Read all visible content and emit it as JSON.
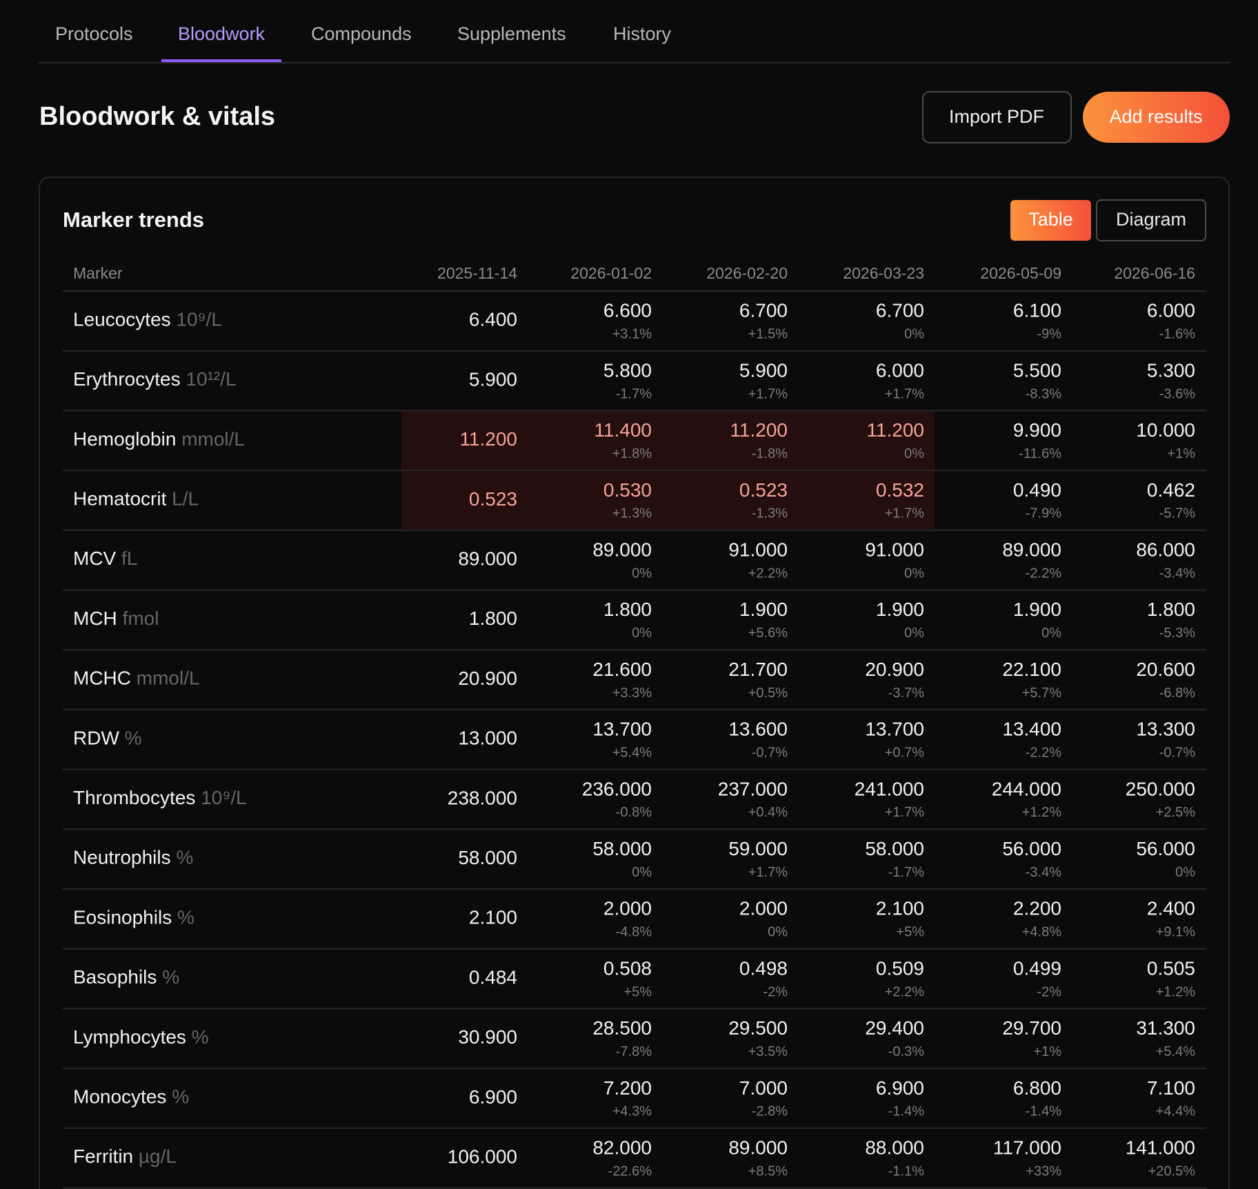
{
  "tabs": [
    "Protocols",
    "Bloodwork",
    "Compounds",
    "Supplements",
    "History"
  ],
  "active_tab": 1,
  "header": {
    "title": "Bloodwork & vitals",
    "buttons": [
      "Import PDF",
      "Add results"
    ]
  },
  "card": {
    "title": "Marker trends",
    "toggle": [
      "Table",
      "Diagram"
    ],
    "active_toggle": 0
  },
  "table": {
    "columns": [
      "Marker",
      "2025-11-14",
      "2026-01-02",
      "2026-02-20",
      "2026-03-23",
      "2026-05-09",
      "2026-06-16"
    ],
    "rows": [
      {
        "name": "Leucocytes",
        "unit": "10⁹/L",
        "values": [
          "6.400",
          "6.600",
          "6.700",
          "6.700",
          "6.100",
          "6.000"
        ],
        "deltas": [
          null,
          "+3.1%",
          "+1.5%",
          "0%",
          "-9%",
          "-1.6%"
        ]
      },
      {
        "name": "Erythrocytes",
        "unit": "10¹²/L",
        "values": [
          "5.900",
          "5.800",
          "5.900",
          "6.000",
          "5.500",
          "5.300"
        ],
        "deltas": [
          null,
          "-1.7%",
          "+1.7%",
          "+1.7%",
          "-8.3%",
          "-3.6%"
        ]
      },
      {
        "name": "Hemoglobin",
        "unit": "mmol/L",
        "values": [
          "11.200",
          "11.400",
          "11.200",
          "11.200",
          "9.900",
          "10.000"
        ],
        "deltas": [
          null,
          "+1.8%",
          "-1.8%",
          "0%",
          "-11.6%",
          "+1%"
        ],
        "flagged": [
          true,
          true,
          true,
          true,
          false,
          false
        ]
      },
      {
        "name": "Hematocrit",
        "unit": "L/L",
        "values": [
          "0.523",
          "0.530",
          "0.523",
          "0.532",
          "0.490",
          "0.462"
        ],
        "deltas": [
          null,
          "+1.3%",
          "-1.3%",
          "+1.7%",
          "-7.9%",
          "-5.7%"
        ],
        "flagged": [
          true,
          true,
          true,
          true,
          false,
          false
        ]
      },
      {
        "name": "MCV",
        "unit": "fL",
        "values": [
          "89.000",
          "89.000",
          "91.000",
          "91.000",
          "89.000",
          "86.000"
        ],
        "deltas": [
          null,
          "0%",
          "+2.2%",
          "0%",
          "-2.2%",
          "-3.4%"
        ]
      },
      {
        "name": "MCH",
        "unit": "fmol",
        "values": [
          "1.800",
          "1.800",
          "1.900",
          "1.900",
          "1.900",
          "1.800"
        ],
        "deltas": [
          null,
          "0%",
          "+5.6%",
          "0%",
          "0%",
          "-5.3%"
        ]
      },
      {
        "name": "MCHC",
        "unit": "mmol/L",
        "values": [
          "20.900",
          "21.600",
          "21.700",
          "20.900",
          "22.100",
          "20.600"
        ],
        "deltas": [
          null,
          "+3.3%",
          "+0.5%",
          "-3.7%",
          "+5.7%",
          "-6.8%"
        ]
      },
      {
        "name": "RDW",
        "unit": "%",
        "values": [
          "13.000",
          "13.700",
          "13.600",
          "13.700",
          "13.400",
          "13.300"
        ],
        "deltas": [
          null,
          "+5.4%",
          "-0.7%",
          "+0.7%",
          "-2.2%",
          "-0.7%"
        ]
      },
      {
        "name": "Thrombocytes",
        "unit": "10⁹/L",
        "values": [
          "238.000",
          "236.000",
          "237.000",
          "241.000",
          "244.000",
          "250.000"
        ],
        "deltas": [
          null,
          "-0.8%",
          "+0.4%",
          "+1.7%",
          "+1.2%",
          "+2.5%"
        ]
      },
      {
        "name": "Neutrophils",
        "unit": "%",
        "values": [
          "58.000",
          "58.000",
          "59.000",
          "58.000",
          "56.000",
          "56.000"
        ],
        "deltas": [
          null,
          "0%",
          "+1.7%",
          "-1.7%",
          "-3.4%",
          "0%"
        ]
      },
      {
        "name": "Eosinophils",
        "unit": "%",
        "values": [
          "2.100",
          "2.000",
          "2.000",
          "2.100",
          "2.200",
          "2.400"
        ],
        "deltas": [
          null,
          "-4.8%",
          "0%",
          "+5%",
          "+4.8%",
          "+9.1%"
        ]
      },
      {
        "name": "Basophils",
        "unit": "%",
        "values": [
          "0.484",
          "0.508",
          "0.498",
          "0.509",
          "0.499",
          "0.505"
        ],
        "deltas": [
          null,
          "+5%",
          "-2%",
          "+2.2%",
          "-2%",
          "+1.2%"
        ]
      },
      {
        "name": "Lymphocytes",
        "unit": "%",
        "values": [
          "30.900",
          "28.500",
          "29.500",
          "29.400",
          "29.700",
          "31.300"
        ],
        "deltas": [
          null,
          "-7.8%",
          "+3.5%",
          "-0.3%",
          "+1%",
          "+5.4%"
        ]
      },
      {
        "name": "Monocytes",
        "unit": "%",
        "values": [
          "6.900",
          "7.200",
          "7.000",
          "6.900",
          "6.800",
          "7.100"
        ],
        "deltas": [
          null,
          "+4.3%",
          "-2.8%",
          "-1.4%",
          "-1.4%",
          "+4.4%"
        ]
      },
      {
        "name": "Ferritin",
        "unit": "µg/L",
        "values": [
          "106.000",
          "82.000",
          "89.000",
          "88.000",
          "117.000",
          "141.000"
        ],
        "deltas": [
          null,
          "-22.6%",
          "+8.5%",
          "-1.1%",
          "+33%",
          "+20.5%"
        ]
      }
    ]
  }
}
